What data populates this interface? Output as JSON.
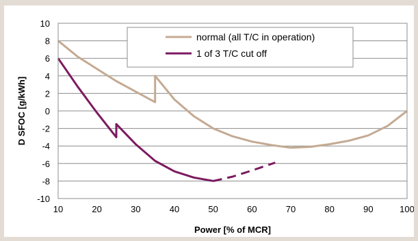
{
  "chart_data": {
    "type": "line",
    "title": "",
    "xlabel": "Power  [% of MCR]",
    "ylabel": "D SFOC [g/kWh]",
    "xlim": [
      10,
      100
    ],
    "ylim": [
      -10,
      10
    ],
    "x_ticks": [
      10,
      20,
      30,
      40,
      50,
      60,
      70,
      80,
      90,
      100
    ],
    "y_ticks": [
      10,
      8,
      6,
      4,
      2,
      0,
      -2,
      -4,
      -6,
      -8,
      -10
    ],
    "grid": "horizontal",
    "legend_position": "top-right",
    "series": [
      {
        "name": "normal (all T/C in operation)",
        "color": "#c4aa93",
        "style": "solid",
        "points": [
          [
            10,
            8
          ],
          [
            15,
            6.2
          ],
          [
            20,
            4.8
          ],
          [
            25,
            3.4
          ],
          [
            30,
            2.2
          ],
          [
            35,
            1
          ],
          [
            35,
            4
          ],
          [
            40,
            1.3
          ],
          [
            45,
            -0.6
          ],
          [
            50,
            -2
          ],
          [
            55,
            -2.9
          ],
          [
            60,
            -3.5
          ],
          [
            65,
            -3.9
          ],
          [
            70,
            -4.2
          ],
          [
            75,
            -4.1
          ],
          [
            80,
            -3.8
          ],
          [
            85,
            -3.4
          ],
          [
            90,
            -2.8
          ],
          [
            95,
            -1.7
          ],
          [
            100,
            0
          ]
        ]
      },
      {
        "name": "1 of 3 T/C cut off",
        "color": "#7b1a5f",
        "style": "solid",
        "points": [
          [
            10,
            6
          ],
          [
            15,
            2.8
          ],
          [
            20,
            -0.2
          ],
          [
            25,
            -3
          ],
          [
            25,
            -1.5
          ],
          [
            30,
            -3.8
          ],
          [
            35,
            -5.7
          ],
          [
            40,
            -6.9
          ],
          [
            45,
            -7.6
          ],
          [
            50,
            -8
          ]
        ]
      },
      {
        "name": "",
        "color": "#7b1a5f",
        "style": "dashed",
        "points": [
          [
            50,
            -8
          ],
          [
            55,
            -7.5
          ],
          [
            60,
            -6.8
          ],
          [
            66,
            -5.9
          ]
        ]
      }
    ]
  }
}
